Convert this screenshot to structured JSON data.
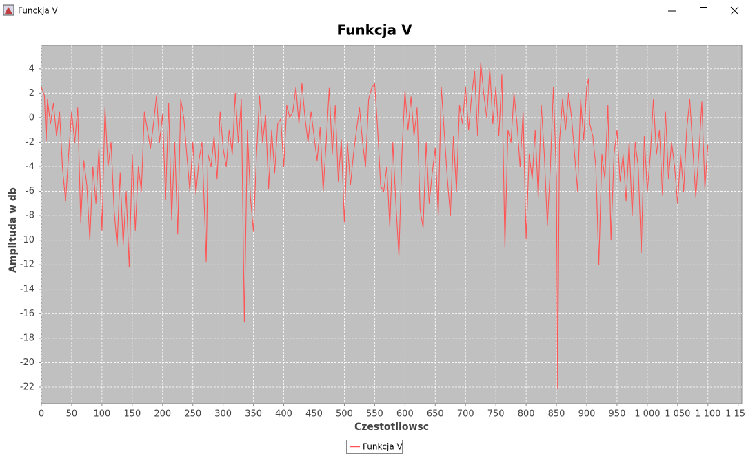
{
  "window": {
    "title": "Funckja V"
  },
  "chart_data": {
    "type": "line",
    "title": "Funkcja V",
    "x_label": "Czestotliowsc",
    "y_label": "Amplituda w db",
    "x": [
      0,
      5,
      8,
      10,
      15,
      20,
      25,
      30,
      35,
      40,
      45,
      50,
      55,
      60,
      65,
      70,
      75,
      80,
      85,
      90,
      95,
      100,
      105,
      110,
      115,
      120,
      125,
      130,
      135,
      140,
      145,
      150,
      155,
      160,
      165,
      170,
      175,
      180,
      185,
      190,
      195,
      200,
      205,
      210,
      215,
      220,
      225,
      230,
      235,
      240,
      245,
      250,
      255,
      260,
      265,
      270,
      272,
      275,
      280,
      285,
      290,
      295,
      300,
      305,
      310,
      315,
      320,
      325,
      330,
      335,
      340,
      345,
      350,
      355,
      360,
      365,
      370,
      375,
      380,
      385,
      390,
      395,
      400,
      405,
      410,
      415,
      420,
      425,
      430,
      435,
      440,
      445,
      450,
      455,
      460,
      465,
      470,
      475,
      480,
      485,
      490,
      495,
      500,
      505,
      510,
      515,
      520,
      525,
      530,
      535,
      540,
      545,
      550,
      555,
      560,
      565,
      570,
      575,
      580,
      585,
      590,
      595,
      600,
      605,
      610,
      615,
      620,
      625,
      630,
      635,
      640,
      645,
      650,
      655,
      660,
      665,
      670,
      675,
      680,
      685,
      690,
      695,
      700,
      705,
      710,
      715,
      720,
      725,
      730,
      735,
      740,
      745,
      750,
      755,
      760,
      765,
      770,
      775,
      780,
      785,
      790,
      795,
      800,
      805,
      810,
      815,
      820,
      825,
      830,
      835,
      840,
      845,
      850,
      852,
      855,
      860,
      865,
      870,
      875,
      880,
      885,
      890,
      895,
      900,
      903,
      905,
      910,
      915,
      920,
      925,
      930,
      935,
      940,
      945,
      950,
      955,
      960,
      965,
      970,
      975,
      980,
      985,
      990,
      995,
      1000,
      1005,
      1010,
      1015,
      1020,
      1025,
      1030,
      1035,
      1040,
      1045,
      1050,
      1055,
      1060,
      1065,
      1070,
      1075,
      1080,
      1085,
      1090,
      1095,
      1100
    ],
    "series": [
      {
        "name": "Funkcja V",
        "color": "#ff5555",
        "values": [
          2.5,
          1.8,
          -1.9,
          1.5,
          -0.5,
          1.2,
          -1.5,
          0.5,
          -4.2,
          -6.8,
          -3,
          0.5,
          -2,
          0.8,
          -8.6,
          -3.5,
          -5.5,
          -10,
          -4,
          -7,
          -2.5,
          -9.2,
          0.8,
          -4,
          -2,
          -7.5,
          -10.5,
          -4.5,
          -10.4,
          -6,
          -12.2,
          -3,
          -9.2,
          -4,
          -6,
          0.5,
          -1,
          -2.5,
          -0.5,
          1.8,
          -2,
          0.3,
          -6.7,
          1.2,
          -8.3,
          -2,
          -9.5,
          1.5,
          0,
          -3,
          -6,
          -2,
          -6.2,
          -3.5,
          -2,
          -8.7,
          -11.8,
          -3,
          -4,
          -1.5,
          -5,
          0.5,
          -2.5,
          -4,
          -1,
          -3,
          2,
          -2,
          1.5,
          -16.7,
          -1,
          -6.5,
          -9.3,
          -3,
          1.8,
          -2,
          0.2,
          -5.8,
          -1,
          -4.5,
          -0.5,
          -0.1,
          -4,
          1,
          0,
          0.5,
          2.5,
          -0.5,
          2.8,
          0,
          -2,
          0.5,
          -1.5,
          -3.5,
          -0.8,
          -6,
          -2,
          2.4,
          -3,
          1,
          -5.2,
          -1.8,
          -8.5,
          -2,
          -5.5,
          -3,
          -1,
          0.8,
          -2,
          -4,
          1.5,
          2.4,
          2.8,
          -1,
          -5.6,
          -6,
          -4,
          -8.9,
          -2,
          -7,
          -11.3,
          -3,
          2.2,
          -1,
          1.7,
          -1.5,
          0.8,
          -7.5,
          -9,
          -2,
          -7,
          -4.5,
          -2.5,
          -8,
          2.5,
          -1.3,
          -5,
          -8,
          -1.5,
          -6,
          1,
          -0.5,
          2.5,
          -1,
          1.8,
          3.8,
          -1.5,
          4.5,
          2,
          0,
          4,
          -0.5,
          2.5,
          -1.5,
          3.5,
          -10.6,
          -1,
          -2,
          2,
          -0.5,
          -4,
          0.5,
          -9.9,
          -3,
          -5,
          -1,
          -6.5,
          1,
          -3,
          -8.8,
          -4,
          2.5,
          -5,
          -22.1,
          -2,
          1.5,
          -1,
          2,
          0,
          -3,
          -6,
          1.5,
          -1.8,
          2.5,
          3.2,
          -0.5,
          -1.5,
          -4,
          -12,
          -3,
          -5,
          1,
          -10,
          -3,
          -1,
          -5.2,
          -3,
          -6.8,
          -2,
          -8,
          -2,
          -4,
          -11,
          -1.5,
          -6,
          -3,
          1.5,
          -3,
          -1,
          -6.3,
          0.5,
          -5,
          -2,
          -4,
          -7,
          -3,
          -6,
          -1,
          1.5,
          -2.5,
          -6.5,
          -3,
          1.3,
          -5.8,
          -2.2
        ]
      }
    ],
    "xlim": [
      0,
      1156
    ],
    "ylim": [
      -23.35,
      5.9
    ],
    "xticks": [
      0,
      50,
      100,
      150,
      200,
      250,
      300,
      350,
      400,
      450,
      500,
      550,
      600,
      650,
      700,
      750,
      800,
      850,
      900,
      950,
      {
        "value": 1000,
        "label": "1 000"
      },
      {
        "value": 1050,
        "label": "1 050"
      },
      {
        "value": 1100,
        "label": "1 100"
      },
      {
        "value": 1150,
        "label": "1 150"
      }
    ],
    "yticks": [
      -22,
      -20,
      -18,
      -16,
      -14,
      -12,
      -10,
      -8,
      -6,
      -4,
      -2,
      0,
      2,
      4
    ],
    "grid": true,
    "plot_background": "#c0c0c0",
    "legend": "bottom"
  }
}
